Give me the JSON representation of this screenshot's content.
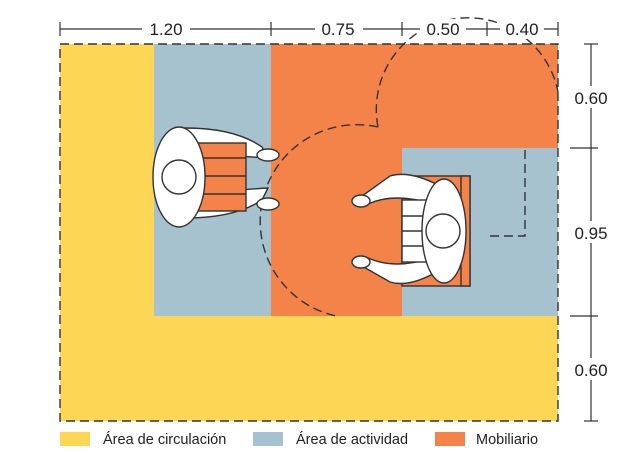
{
  "colors": {
    "circulation": "#FDD655",
    "activity": "#A7C2CF",
    "furniture": "#F4834A",
    "line": "#333333",
    "figure_fill": "#FFFFFF"
  },
  "top_dimensions": [
    "1.20",
    "0.75",
    "0.50",
    "0.40"
  ],
  "right_dimensions": [
    "0.60",
    "0.95",
    "0.60"
  ],
  "legend": [
    {
      "label": "Área de circulación",
      "color_key": "circulation"
    },
    {
      "label": "Área de actividad",
      "color_key": "activity"
    },
    {
      "label": "Mobiliario",
      "color_key": "furniture"
    }
  ]
}
